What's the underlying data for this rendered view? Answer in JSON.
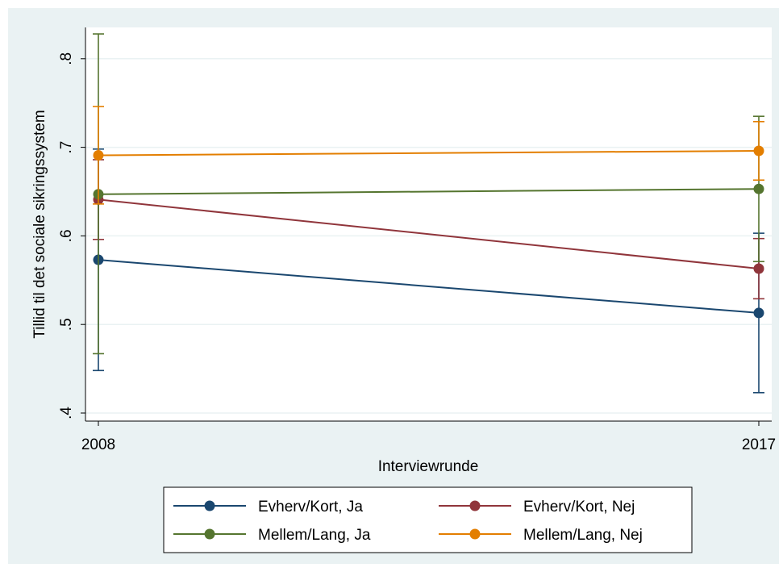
{
  "chart_data": {
    "type": "line",
    "title": "",
    "xlabel": "Interviewrunde",
    "ylabel": "Tillid til det sociale sikringssystem",
    "x": [
      "2008",
      "2017"
    ],
    "ylim": [
      0.4,
      0.8
    ],
    "yticks": [
      {
        "value": 0.4,
        "label": ".4"
      },
      {
        "value": 0.5,
        "label": ".5"
      },
      {
        "value": 0.6,
        "label": ".6"
      },
      {
        "value": 0.7,
        "label": ".7"
      },
      {
        "value": 0.8,
        "label": ".8"
      }
    ],
    "grid": true,
    "legend_position": "bottom",
    "series": [
      {
        "name": "Evherv/Kort, Ja",
        "color": "#1a476f",
        "values": [
          0.573,
          0.513
        ],
        "ci_low": [
          0.448,
          0.423
        ],
        "ci_high": [
          0.698,
          0.603
        ]
      },
      {
        "name": "Evherv/Kort, Nej",
        "color": "#90353b",
        "values": [
          0.641,
          0.563
        ],
        "ci_low": [
          0.596,
          0.529
        ],
        "ci_high": [
          0.686,
          0.597
        ]
      },
      {
        "name": "Mellem/Lang, Ja",
        "color": "#55752f",
        "values": [
          0.647,
          0.653
        ],
        "ci_low": [
          0.467,
          0.571
        ],
        "ci_high": [
          0.828,
          0.735
        ]
      },
      {
        "name": "Mellem/Lang, Nej",
        "color": "#e37e00",
        "values": [
          0.691,
          0.696
        ],
        "ci_low": [
          0.636,
          0.663
        ],
        "ci_high": [
          0.746,
          0.729
        ]
      }
    ]
  }
}
